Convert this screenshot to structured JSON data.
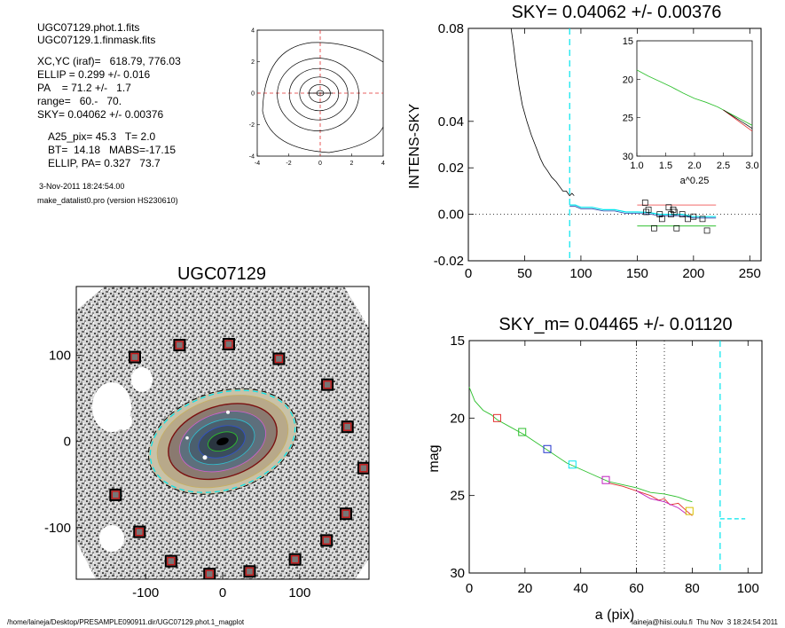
{
  "info": {
    "file_phot": "UGC07129.phot.1.fits",
    "file_mask": "UGC07129.1.finmask.fits",
    "xcyc": "XC,YC (iraf)=   618.79, 776.03",
    "ellip": "ELLIP = 0.299 +/- 0.016",
    "pa": "PA    = 71.2 +/-   1.7",
    "range": "range=   60.-   70.",
    "sky": "SKY= 0.04062 +/- 0.00376",
    "a25": "A25_pix= 45.3   T= 2.0",
    "bt": "BT=  14.18   MABS=-17.15",
    "ellip_pa": "ELLIP, PA= 0.327   73.7",
    "date": "3-Nov-2011 18:24:54.00",
    "program": "make_datalist0.pro (version HS230610)"
  },
  "footer": {
    "left": "/home/laineja/Desktop/PRESAMPLE090911.dir/UGC07129.phot.1_magplot",
    "right": "laineja@hiisi.oulu.fi  Thu Nov  3 18:24:54 2011"
  },
  "colors": {
    "cyan": "#00e5ee",
    "red": "#e33030",
    "green": "#2ec02e",
    "blue": "#2233cc",
    "magenta": "#c020c0",
    "yellow": "#d8c000",
    "pink": "#f06a6a"
  },
  "chart_data": [
    {
      "type": "contour",
      "ticks_x": [
        "-4",
        "-2",
        "0",
        "2",
        "4"
      ],
      "ticks_y": [
        "4",
        "2",
        "0",
        "-2",
        "-4"
      ],
      "xlim": [
        -4,
        4
      ],
      "ylim": [
        -4,
        4
      ],
      "levels": 5
    },
    {
      "type": "line",
      "title": "SKY= 0.04062 +/- 0.00376",
      "ylabel": "INTENS-SKY",
      "xlim": [
        0,
        260
      ],
      "ylim": [
        -0.02,
        0.08
      ],
      "xticks": [
        "0",
        "50",
        "100",
        "150",
        "200",
        "250"
      ],
      "yticks": [
        "0.08",
        "0.04",
        "0.02",
        "0.00",
        "-0.02"
      ],
      "profile": {
        "x": [
          38,
          40,
          42,
          45,
          48,
          52,
          56,
          60,
          64,
          67,
          70,
          74,
          78,
          81,
          84,
          87,
          90,
          92,
          94
        ],
        "y": [
          0.085,
          0.073,
          0.065,
          0.055,
          0.047,
          0.04,
          0.034,
          0.029,
          0.024,
          0.021,
          0.019,
          0.016,
          0.014,
          0.012,
          0.01,
          0.01,
          0.008,
          0.009,
          0.008
        ]
      },
      "cyan_profile": {
        "x": [
          90,
          95,
          100,
          110,
          120,
          130,
          140,
          150,
          160,
          170,
          180,
          190,
          200,
          210,
          220
        ],
        "y": [
          0.004,
          0.004,
          0.003,
          0.003,
          0.002,
          0.002,
          0.001,
          0.001,
          0.0008,
          0.0,
          0.0,
          0.0,
          -0.001,
          -0.001,
          -0.001
        ]
      },
      "sky_vline_x": 90,
      "red_level": {
        "x": [
          150,
          220
        ],
        "y": 0.004
      },
      "green_level": {
        "x": [
          150,
          220
        ],
        "y": -0.005
      },
      "squares": {
        "x": [
          157,
          158,
          160,
          165,
          170,
          172,
          178,
          180,
          182,
          183,
          185,
          190,
          195,
          200,
          208,
          212
        ],
        "y": [
          0.005,
          0.001,
          0.002,
          -0.006,
          0.0,
          -0.002,
          0.003,
          0.0,
          0.002,
          0.001,
          -0.006,
          0.0,
          -0.002,
          -0.001,
          -0.002,
          -0.007
        ]
      },
      "inset": {
        "xlabel": "a^0.25",
        "xlim": [
          1.0,
          3.0
        ],
        "ylim": [
          15,
          30
        ],
        "xticks": [
          "1.0",
          "1.5",
          "2.0",
          "2.5",
          "3.0"
        ],
        "yticks": [
          "15",
          "20",
          "25",
          "30"
        ],
        "x": [
          1.0,
          1.2,
          1.4,
          1.6,
          1.8,
          2.0,
          2.2,
          2.4,
          2.5,
          2.6,
          2.7,
          2.8,
          2.9,
          3.0
        ],
        "y": [
          18.8,
          19.6,
          20.3,
          21.0,
          21.8,
          22.5,
          23.0,
          23.6,
          24.0,
          24.4,
          24.8,
          25.2,
          25.6,
          26.0
        ]
      }
    },
    {
      "type": "image",
      "title": "UGC07129",
      "xticks": [
        "-100",
        "0",
        "100"
      ],
      "yticks": [
        "100",
        "0",
        "-100"
      ],
      "xlim": [
        -190,
        190
      ],
      "ylim": [
        -160,
        180
      ],
      "ellipse_sma": 60,
      "ellipse_ellip": 0.299,
      "sky_boxes": [
        {
          "x": -114,
          "y": 98
        },
        {
          "x": -56,
          "y": 112
        },
        {
          "x": 8,
          "y": 113
        },
        {
          "x": 73,
          "y": 96
        },
        {
          "x": 136,
          "y": 66
        },
        {
          "x": 162,
          "y": 17
        },
        {
          "x": 183,
          "y": -31
        },
        {
          "x": 160,
          "y": -84
        },
        {
          "x": 135,
          "y": -115
        },
        {
          "x": 94,
          "y": -137
        },
        {
          "x": 35,
          "y": -151
        },
        {
          "x": -17,
          "y": -154
        },
        {
          "x": -67,
          "y": -139
        },
        {
          "x": -108,
          "y": -105
        },
        {
          "x": -139,
          "y": -62
        }
      ]
    },
    {
      "type": "line",
      "title": "SKY_m=  0.04465 +/- 0.01120",
      "xlabel": "a (pix)",
      "ylabel": "mag",
      "xlim": [
        0,
        105
      ],
      "ylim": [
        15,
        30
      ],
      "xticks": [
        "0",
        "20",
        "40",
        "60",
        "80",
        "100"
      ],
      "yticks": [
        "15",
        "20",
        "25",
        "30"
      ],
      "dotted_vlines": [
        60,
        70
      ],
      "sky_vline_x": 90,
      "sky_hline": {
        "x": [
          90,
          99
        ],
        "y": 26.5
      },
      "series": [
        {
          "color": "green",
          "x": [
            0,
            2,
            5,
            8,
            10,
            15,
            20,
            25,
            30,
            35,
            40,
            45,
            50,
            55,
            60,
            65,
            70,
            75,
            78,
            80
          ],
          "y": [
            18.0,
            18.9,
            19.5,
            19.8,
            20.1,
            20.6,
            21.1,
            21.7,
            22.3,
            22.9,
            23.3,
            23.7,
            24.1,
            24.3,
            24.5,
            24.8,
            24.9,
            25.1,
            25.3,
            25.4
          ]
        },
        {
          "color": "red",
          "x": [
            50,
            55,
            60,
            65,
            68,
            70,
            72,
            75,
            78,
            80
          ],
          "y": [
            24.2,
            24.4,
            24.7,
            25.0,
            25.3,
            25.2,
            25.6,
            25.5,
            26.0,
            26.3
          ]
        },
        {
          "color": "magenta",
          "x": [
            60,
            65,
            70,
            75,
            78
          ],
          "y": [
            24.7,
            25.2,
            25.4,
            25.8,
            26.2
          ]
        }
      ],
      "markers": [
        {
          "color": "red",
          "x": 10,
          "y": 20.0
        },
        {
          "color": "green",
          "x": 19,
          "y": 20.9
        },
        {
          "color": "blue",
          "x": 28,
          "y": 22.0
        },
        {
          "color": "cyan",
          "x": 37,
          "y": 23.0
        },
        {
          "color": "magenta",
          "x": 49,
          "y": 24.0
        },
        {
          "color": "yellow",
          "x": 79,
          "y": 26.0
        }
      ]
    }
  ]
}
